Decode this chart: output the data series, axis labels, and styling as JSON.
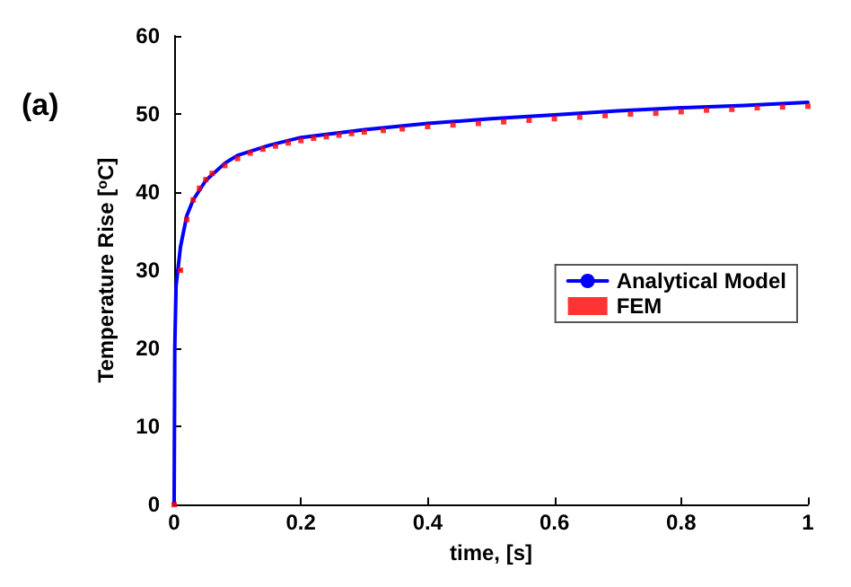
{
  "chart_data": {
    "type": "line",
    "xlabel": "time, [s]",
    "ylabel": "Temperature Rise [$^{o}$C]",
    "annotations": [
      "(a)"
    ],
    "xlim": [
      0,
      1
    ],
    "xticks": [
      0,
      0.2,
      0.4,
      0.6,
      0.8,
      1
    ],
    "ylim": [
      0,
      60
    ],
    "yticks": [
      0,
      10,
      20,
      30,
      40,
      50,
      60
    ],
    "grid": false,
    "legend": "right",
    "series": [
      {
        "name": "Analytical Model",
        "color": "#0000ff",
        "line_style": "solid",
        "marker": "none",
        "x": [
          0,
          0.001,
          0.003,
          0.01,
          0.02,
          0.03,
          0.05,
          0.08,
          0.1,
          0.15,
          0.2,
          0.3,
          0.4,
          0.5,
          0.6,
          0.7,
          0.8,
          0.9,
          1
        ],
        "values": [
          0,
          20,
          28,
          33,
          37,
          39,
          41.5,
          43.7,
          44.7,
          46,
          47,
          48,
          48.8,
          49.4,
          49.9,
          50.4,
          50.8,
          51.1,
          51.5
        ]
      },
      {
        "name": "FEM",
        "type": "scatter",
        "color": "#ff0000",
        "marker": "square",
        "x": [
          0,
          0.01,
          0.02,
          0.03,
          0.04,
          0.05,
          0.06,
          0.08,
          0.1,
          0.12,
          0.14,
          0.16,
          0.18,
          0.2,
          0.22,
          0.24,
          0.26,
          0.28,
          0.3,
          0.33,
          0.36,
          0.4,
          0.44,
          0.48,
          0.52,
          0.56,
          0.6,
          0.64,
          0.68,
          0.72,
          0.76,
          0.8,
          0.84,
          0.88,
          0.92,
          0.96,
          1
        ],
        "values": [
          0,
          30,
          36.5,
          39,
          40.5,
          41.6,
          42.4,
          43.4,
          44.3,
          45,
          45.5,
          45.9,
          46.3,
          46.6,
          46.9,
          47.1,
          47.3,
          47.5,
          47.7,
          47.9,
          48.1,
          48.4,
          48.6,
          48.8,
          49,
          49.2,
          49.4,
          49.6,
          49.8,
          50,
          50.1,
          50.3,
          50.5,
          50.6,
          50.8,
          50.9,
          51
        ]
      }
    ]
  }
}
